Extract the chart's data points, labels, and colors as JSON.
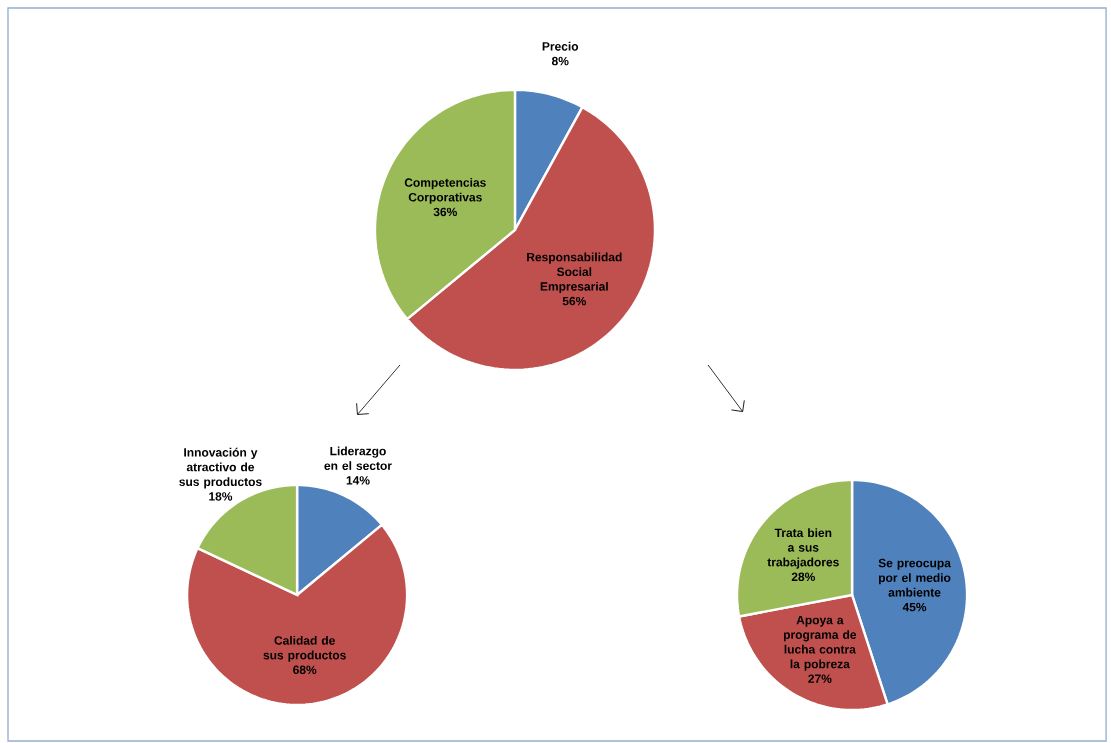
{
  "chart_data": [
    {
      "type": "pie",
      "categories": [
        "Precio",
        "Responsabilidad Social Empresarial",
        "Competencias Corporativas"
      ],
      "values": [
        8,
        56,
        36
      ],
      "value_labels": [
        "8%",
        "56%",
        "36%"
      ],
      "colors": [
        "#4f81bd",
        "#c0504d",
        "#9bbb59"
      ]
    },
    {
      "type": "pie",
      "categories": [
        "Liderazgo en el sector",
        "Calidad de sus productos",
        "Innovación y atractivo de sus productos"
      ],
      "values": [
        14,
        68,
        18
      ],
      "value_labels": [
        "14%",
        "68%",
        "18%"
      ],
      "colors": [
        "#4f81bd",
        "#c0504d",
        "#9bbb59"
      ]
    },
    {
      "type": "pie",
      "categories": [
        "Se preocupa por el medio ambiente",
        "Apoya a programa de lucha contra la pobreza",
        "Trata bien a sus trabajadores"
      ],
      "values": [
        45,
        27,
        28
      ],
      "value_labels": [
        "45%",
        "27%",
        "28%"
      ],
      "colors": [
        "#4f81bd",
        "#c0504d",
        "#9bbb59"
      ]
    }
  ]
}
